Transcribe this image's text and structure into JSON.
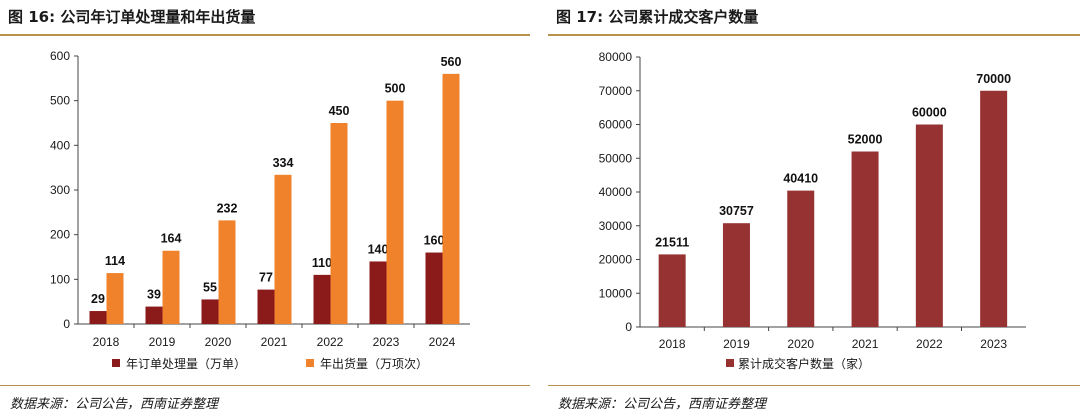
{
  "left": {
    "title": "图 16:  公司年订单处理量和年出货量",
    "source": "数据来源：公司公告，西南证券整理"
  },
  "right": {
    "title": "图 17:  公司累计成交客户数量",
    "source": "数据来源：公司公告，西南证券整理"
  },
  "colors": {
    "orders": "#8b1a1a",
    "shipments": "#f0822c",
    "customers": "#963232",
    "accent_rule": "#b8924a"
  },
  "chart_data": [
    {
      "type": "bar",
      "title": "公司年订单处理量和年出货量",
      "categories": [
        "2018",
        "2019",
        "2020",
        "2021",
        "2022",
        "2023",
        "2024"
      ],
      "series": [
        {
          "name": "年订单处理量（万单）",
          "values": [
            29,
            39,
            55,
            77,
            110,
            140,
            160
          ]
        },
        {
          "name": "年出货量（万项次）",
          "values": [
            114,
            164,
            232,
            334,
            450,
            500,
            560
          ]
        }
      ],
      "yticks": [
        "0",
        "100",
        "200",
        "300",
        "400",
        "500",
        "600"
      ],
      "ylim": [
        0,
        600
      ],
      "xlabel": "",
      "ylabel": "",
      "legend": "bottom",
      "grid": false
    },
    {
      "type": "bar",
      "title": "公司累计成交客户数量",
      "categories": [
        "2018",
        "2019",
        "2020",
        "2021",
        "2022",
        "2023"
      ],
      "series": [
        {
          "name": "累计成交客户数量（家）",
          "values": [
            21511,
            30757,
            40410,
            52000,
            60000,
            70000
          ]
        }
      ],
      "yticks": [
        "0",
        "10000",
        "20000",
        "30000",
        "40000",
        "50000",
        "60000",
        "70000",
        "80000"
      ],
      "ylim": [
        0,
        80000
      ],
      "xlabel": "",
      "ylabel": "",
      "legend": "bottom",
      "grid": false
    }
  ]
}
